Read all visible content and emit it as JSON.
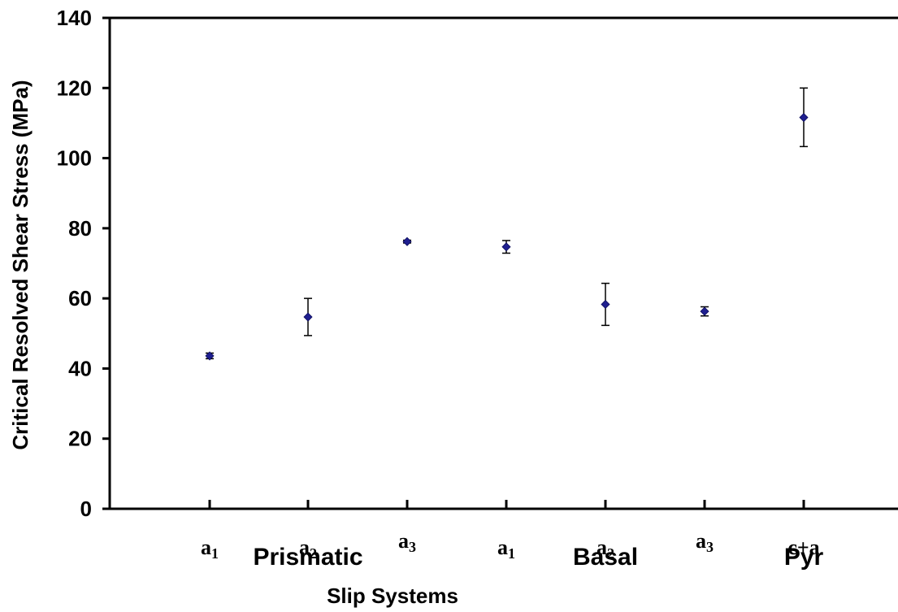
{
  "chart_data": {
    "type": "scatter",
    "xlabel": "Slip Systems",
    "ylabel": "Critical Resolved Shear Stress (MPa)",
    "ylim": [
      0,
      140
    ],
    "yticks": [
      "0",
      "20",
      "40",
      "60",
      "80",
      "100",
      "120",
      "140"
    ],
    "grid": false,
    "marker_color": "#1f1f8f",
    "points": [
      {
        "base": "a",
        "sub": "1",
        "y": 43.6,
        "err_low": 42.8,
        "err_high": 44.4
      },
      {
        "base": "a",
        "sub": "2",
        "y": 54.7,
        "err_low": 49.4,
        "err_high": 60.0
      },
      {
        "base": "a",
        "sub": "3",
        "y": 76.2,
        "err_low": 75.8,
        "err_high": 76.6
      },
      {
        "base": "a",
        "sub": "1",
        "y": 74.7,
        "err_low": 72.9,
        "err_high": 76.5
      },
      {
        "base": "a",
        "sub": "2",
        "y": 58.3,
        "err_low": 52.3,
        "err_high": 64.3
      },
      {
        "base": "a",
        "sub": "3",
        "y": 56.3,
        "err_low": 55.0,
        "err_high": 57.6
      },
      {
        "base": "c+a",
        "sub": "",
        "y": 111.6,
        "err_low": 103.3,
        "err_high": 120.0
      }
    ],
    "groups": [
      {
        "label": "Prismatic"
      },
      {
        "label": "Basal"
      },
      {
        "label": "Pyr"
      }
    ]
  }
}
